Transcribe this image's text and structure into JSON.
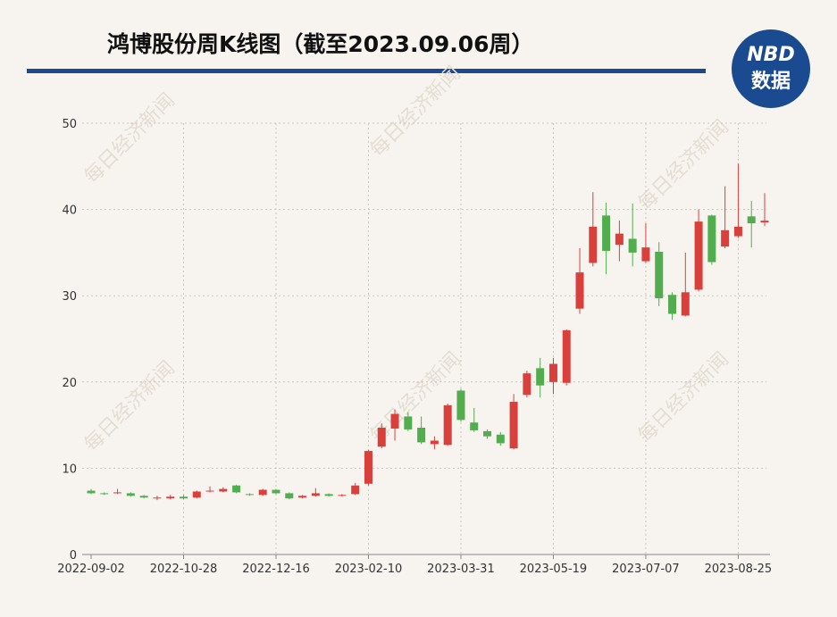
{
  "chart_data": {
    "type": "candlestick",
    "title": "鸿博股份周K线图（截至2023.09.06周）",
    "logo": {
      "top": "NBD",
      "bottom": "数据"
    },
    "watermark": "每日经济新闻",
    "categories": [
      "2022-09-02",
      null,
      null,
      null,
      null,
      null,
      null,
      "2022-10-28",
      null,
      null,
      null,
      null,
      null,
      null,
      "2022-12-16",
      null,
      null,
      null,
      null,
      null,
      null,
      "2023-02-10",
      null,
      null,
      null,
      null,
      null,
      null,
      "2023-03-31",
      null,
      null,
      null,
      null,
      null,
      null,
      "2023-05-19",
      null,
      null,
      null,
      null,
      null,
      null,
      "2023-07-07",
      null,
      null,
      null,
      null,
      null,
      null,
      "2023-08-25",
      null,
      null
    ],
    "open": [
      7.4,
      7.1,
      7.1,
      7.1,
      6.8,
      6.5,
      6.5,
      6.7,
      6.6,
      7.3,
      7.3,
      8.0,
      7.0,
      6.9,
      7.5,
      7.1,
      6.6,
      6.8,
      7.0,
      6.8,
      7.0,
      8.2,
      12.5,
      14.6,
      16.0,
      14.7,
      12.8,
      12.7,
      19.0,
      15.3,
      14.3,
      13.9,
      12.3,
      18.5,
      21.6,
      20.0,
      19.9,
      28.5,
      33.8,
      39.3,
      35.9,
      36.6,
      34.0,
      35.1,
      30.1,
      27.7,
      30.7,
      39.3,
      35.7,
      36.9,
      39.2,
      38.5
    ],
    "close": [
      7.1,
      7.0,
      7.2,
      6.8,
      6.6,
      6.6,
      6.7,
      6.5,
      7.3,
      7.4,
      7.6,
      7.2,
      6.9,
      7.5,
      7.1,
      6.5,
      6.8,
      7.1,
      6.8,
      6.9,
      8.0,
      12.0,
      14.7,
      16.3,
      14.5,
      13.0,
      13.2,
      17.3,
      15.6,
      14.4,
      13.7,
      12.9,
      17.7,
      21.0,
      19.6,
      22.1,
      26.0,
      32.7,
      38.0,
      35.2,
      37.2,
      35.0,
      35.6,
      29.7,
      27.9,
      30.4,
      38.6,
      33.9,
      37.6,
      38.0,
      38.4,
      38.7
    ],
    "low": [
      7.0,
      6.9,
      7.0,
      6.7,
      6.5,
      6.3,
      6.4,
      6.4,
      6.5,
      7.2,
      7.2,
      7.1,
      6.8,
      6.8,
      7.0,
      6.4,
      6.5,
      6.7,
      6.7,
      6.7,
      6.9,
      8.0,
      12.3,
      13.2,
      14.3,
      12.8,
      12.2,
      12.6,
      15.4,
      14.2,
      13.4,
      12.6,
      12.2,
      18.2,
      18.2,
      18.6,
      19.6,
      27.9,
      33.4,
      32.5,
      34.0,
      33.4,
      33.8,
      28.8,
      27.2,
      27.6,
      30.5,
      33.6,
      35.5,
      36.7,
      35.6,
      38.1
    ],
    "high": [
      7.6,
      7.2,
      7.6,
      7.2,
      6.9,
      6.8,
      6.9,
      6.9,
      7.4,
      7.9,
      7.8,
      8.1,
      7.1,
      7.6,
      7.6,
      7.2,
      6.9,
      7.7,
      7.1,
      7.0,
      8.3,
      12.1,
      15.2,
      16.8,
      16.5,
      16.0,
      13.7,
      17.5,
      19.2,
      17.0,
      14.5,
      14.2,
      18.6,
      21.3,
      22.8,
      22.8,
      26.1,
      35.5,
      42.0,
      40.8,
      38.7,
      40.7,
      38.4,
      36.2,
      30.4,
      35.0,
      40.0,
      39.4,
      42.7,
      45.3,
      41.0,
      41.9
    ],
    "up_color": "#d9403c",
    "down_color": "#52ad4f",
    "ylim": [
      0,
      50
    ],
    "yticks": [
      0,
      10,
      20,
      30,
      40,
      50
    ],
    "grid": true
  }
}
